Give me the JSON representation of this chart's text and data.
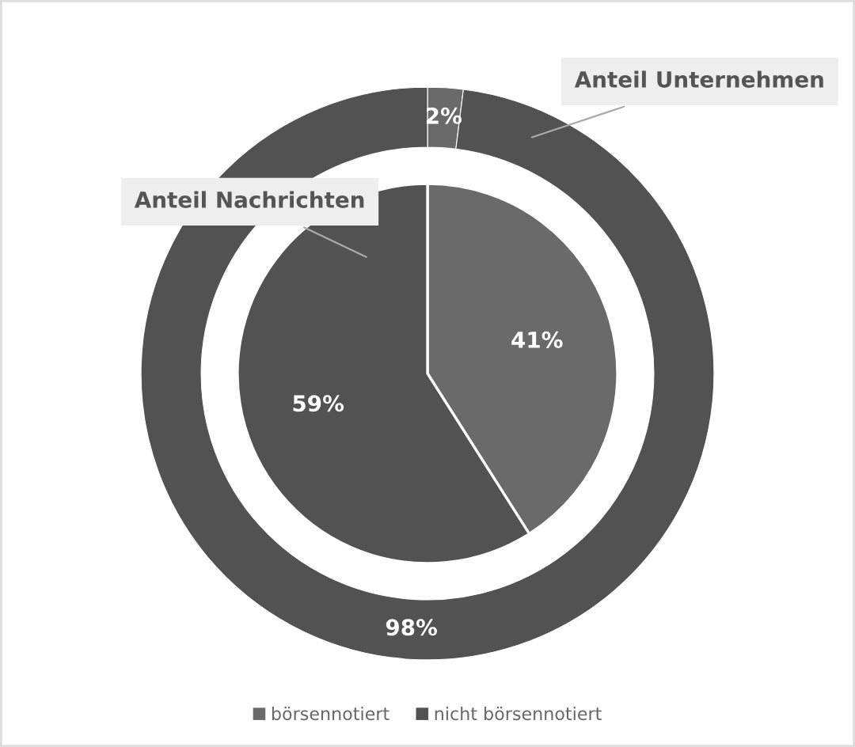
{
  "chart_data": {
    "type": "donut",
    "categories": [
      "börsennotiert",
      "nicht börsennotiert"
    ],
    "colors": [
      "#6a6a6a",
      "#525252"
    ],
    "legend": "bottom",
    "series": [
      {
        "name": "Anteil Unternehmen",
        "values": [
          2,
          98
        ],
        "value_labels": [
          "2%",
          "98%"
        ]
      },
      {
        "name": "Anteil Nachrichten",
        "type": "pie",
        "values": [
          41,
          59
        ],
        "value_labels": [
          "41%",
          "59%"
        ]
      }
    ]
  }
}
